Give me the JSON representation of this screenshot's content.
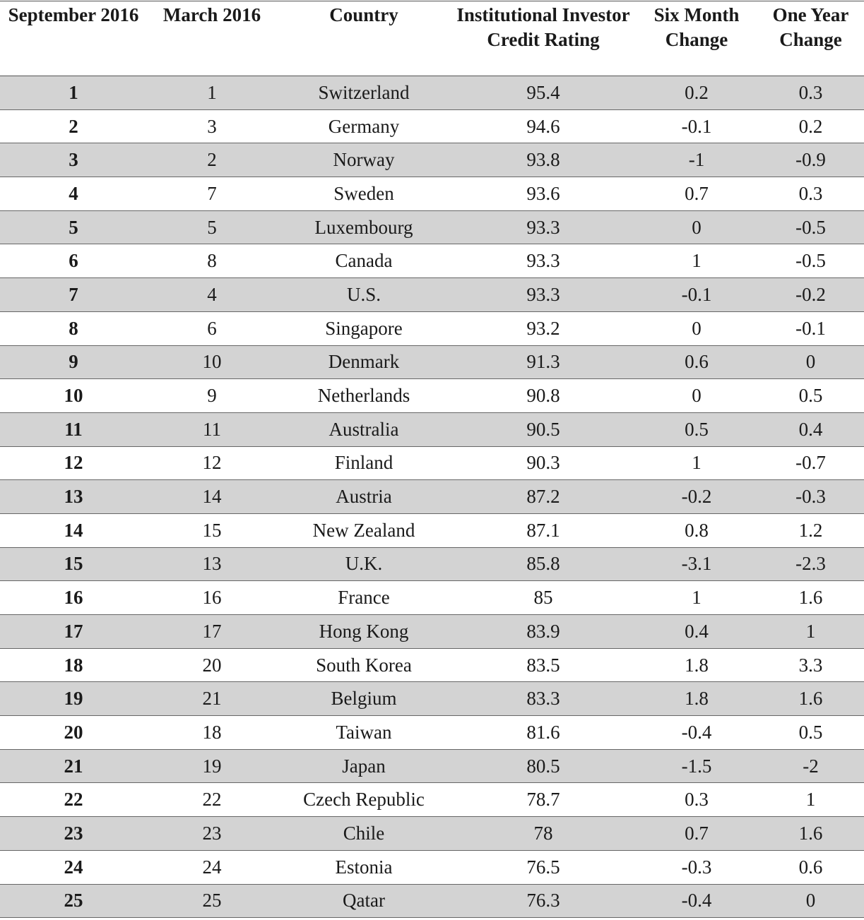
{
  "table": {
    "headers": [
      "September 2016",
      "March 2016",
      "Country",
      "Institutional Investor Credit Rating",
      "Six Month Change",
      "One Year Change"
    ],
    "rows": [
      [
        "1",
        "1",
        "Switzerland",
        "95.4",
        "0.2",
        "0.3"
      ],
      [
        "2",
        "3",
        "Germany",
        "94.6",
        "-0.1",
        "0.2"
      ],
      [
        "3",
        "2",
        "Norway",
        "93.8",
        "-1",
        "-0.9"
      ],
      [
        "4",
        "7",
        "Sweden",
        "93.6",
        "0.7",
        "0.3"
      ],
      [
        "5",
        "5",
        "Luxembourg",
        "93.3",
        "0",
        "-0.5"
      ],
      [
        "6",
        "8",
        "Canada",
        "93.3",
        "1",
        "-0.5"
      ],
      [
        "7",
        "4",
        "U.S.",
        "93.3",
        "-0.1",
        "-0.2"
      ],
      [
        "8",
        "6",
        "Singapore",
        "93.2",
        "0",
        "-0.1"
      ],
      [
        "9",
        "10",
        "Denmark",
        "91.3",
        "0.6",
        "0"
      ],
      [
        "10",
        "9",
        "Netherlands",
        "90.8",
        "0",
        "0.5"
      ],
      [
        "11",
        "11",
        "Australia",
        "90.5",
        "0.5",
        "0.4"
      ],
      [
        "12",
        "12",
        "Finland",
        "90.3",
        "1",
        "-0.7"
      ],
      [
        "13",
        "14",
        "Austria",
        "87.2",
        "-0.2",
        "-0.3"
      ],
      [
        "14",
        "15",
        "New Zealand",
        "87.1",
        "0.8",
        "1.2"
      ],
      [
        "15",
        "13",
        "U.K.",
        "85.8",
        "-3.1",
        "-2.3"
      ],
      [
        "16",
        "16",
        "France",
        "85",
        "1",
        "1.6"
      ],
      [
        "17",
        "17",
        "Hong Kong",
        "83.9",
        "0.4",
        "1"
      ],
      [
        "18",
        "20",
        "South Korea",
        "83.5",
        "1.8",
        "3.3"
      ],
      [
        "19",
        "21",
        "Belgium",
        "83.3",
        "1.8",
        "1.6"
      ],
      [
        "20",
        "18",
        "Taiwan",
        "81.6",
        "-0.4",
        "0.5"
      ],
      [
        "21",
        "19",
        "Japan",
        "80.5",
        "-1.5",
        "-2"
      ],
      [
        "22",
        "22",
        "Czech Republic",
        "78.7",
        "0.3",
        "1"
      ],
      [
        "23",
        "23",
        "Chile",
        "78",
        "0.7",
        "1.6"
      ],
      [
        "24",
        "24",
        "Estonia",
        "76.5",
        "-0.3",
        "0.6"
      ],
      [
        "25",
        "25",
        "Qatar",
        "76.3",
        "-0.4",
        "0"
      ]
    ]
  }
}
